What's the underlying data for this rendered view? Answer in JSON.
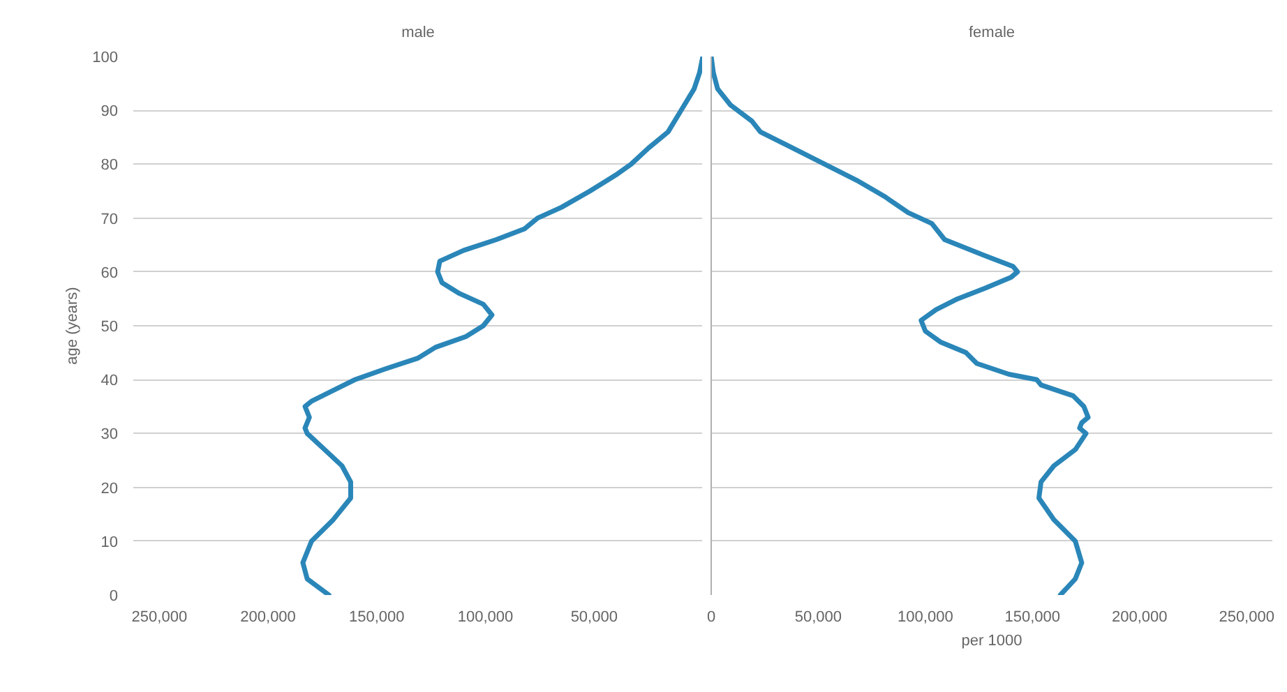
{
  "chart_data": [
    {
      "type": "line",
      "orientation": "horizontal",
      "ylabel": "age (years)",
      "series": [
        {
          "name": "male",
          "color": "#2a86b8",
          "x": [
            0,
            3,
            6,
            10,
            14,
            18,
            21,
            24,
            27,
            30,
            31,
            33,
            35,
            36,
            38,
            40,
            42,
            44,
            46,
            48,
            50,
            52,
            54,
            56,
            58,
            60,
            62,
            64,
            66,
            68,
            70,
            72,
            75,
            78,
            80,
            83,
            86,
            90,
            94,
            97,
            100
          ],
          "values": [
            172000,
            182000,
            184000,
            180000,
            170000,
            162000,
            162000,
            166000,
            174000,
            182000,
            183000,
            181000,
            183000,
            180000,
            170000,
            160000,
            146000,
            131000,
            123000,
            109000,
            101000,
            97000,
            101000,
            112000,
            120000,
            122000,
            121000,
            110000,
            95000,
            82000,
            76000,
            65000,
            52000,
            40000,
            33000,
            25000,
            16000,
            10000,
            4000,
            1500,
            0
          ]
        }
      ],
      "xlim": [
        262000,
        0
      ],
      "xticks": [
        {
          "value": 250000,
          "label": "250,000"
        },
        {
          "value": 200000,
          "label": "200,000"
        },
        {
          "value": 150000,
          "label": "150,000"
        },
        {
          "value": 100000,
          "label": "100,000"
        },
        {
          "value": 50000,
          "label": "50,000"
        }
      ],
      "ylim": [
        0,
        100
      ],
      "yticks": [
        0,
        10,
        20,
        30,
        40,
        50,
        60,
        70,
        80,
        90,
        100
      ],
      "grid": "y",
      "line_style": "solid"
    },
    {
      "type": "line",
      "orientation": "horizontal",
      "xlabel": "per 1000",
      "series": [
        {
          "name": "female",
          "color": "#2a86b8",
          "x": [
            0,
            3,
            6,
            10,
            14,
            18,
            21,
            24,
            27,
            30,
            31,
            32,
            33,
            35,
            37,
            39,
            40,
            41,
            43,
            45,
            47,
            49,
            51,
            53,
            55,
            57,
            59,
            60,
            61,
            63,
            66,
            69,
            71,
            74,
            77,
            80,
            83,
            86,
            88,
            91,
            94,
            97,
            100
          ],
          "values": [
            163000,
            170000,
            173000,
            170000,
            160000,
            153000,
            154000,
            160000,
            170000,
            175000,
            172000,
            173000,
            176000,
            174000,
            169000,
            154000,
            152000,
            139000,
            124000,
            119000,
            107000,
            100000,
            98000,
            105000,
            115000,
            128000,
            140000,
            143000,
            141000,
            128000,
            109000,
            103000,
            92000,
            81000,
            68000,
            53000,
            38000,
            23000,
            19000,
            9000,
            3000,
            1000,
            0
          ]
        }
      ],
      "xlim": [
        0,
        262000
      ],
      "xticks": [
        0,
        {
          "value": 50000,
          "label": "50,000"
        },
        {
          "value": 100000,
          "label": "100,000"
        },
        {
          "value": 150000,
          "label": "150,000"
        },
        {
          "value": 200000,
          "label": "200,000"
        },
        {
          "value": 250000,
          "label": "250,000"
        }
      ],
      "ylim": [
        0,
        100
      ],
      "yticks": [
        0,
        10,
        20,
        30,
        40,
        50,
        60,
        70,
        80,
        90,
        100
      ],
      "grid": "y",
      "line_style": "solid",
      "tick_labels": "x"
    }
  ]
}
